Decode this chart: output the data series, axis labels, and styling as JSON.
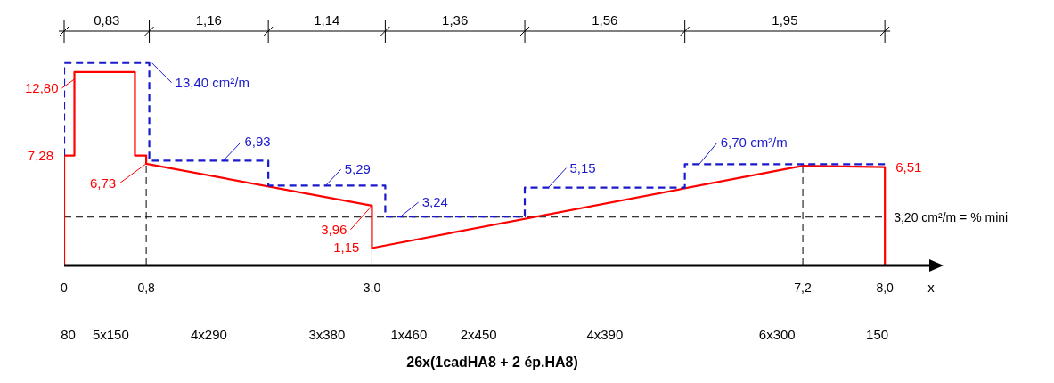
{
  "chart_data": {
    "type": "line",
    "title": "26x(1cadHA8 + 2 ép.HA8)",
    "xlabel": "x",
    "xlim": [
      0,
      8.45
    ],
    "xticks": [
      0,
      {
        "value": 0.8,
        "label": "0,8"
      },
      {
        "value": 3.0,
        "label": "3,0"
      },
      {
        "value": 7.2,
        "label": "7,2"
      },
      {
        "value": 8.0,
        "label": "8,0"
      }
    ],
    "series": [
      {
        "type": "line",
        "color": "#ff0000",
        "line_style": "solid",
        "x": [
          0,
          0,
          0.1,
          0.1,
          0.69,
          0.69,
          0.8,
          0.8,
          3.0,
          3.0,
          7.2,
          8.0,
          8.0
        ],
        "values": [
          0,
          7.28,
          7.28,
          12.8,
          12.8,
          7.28,
          7.28,
          6.73,
          3.96,
          1.15,
          6.6,
          6.51,
          0
        ],
        "value_labels": [
          null,
          "7,28",
          null,
          "12,80",
          null,
          null,
          null,
          "6,73",
          "3,96",
          "1,15",
          null,
          "6,51",
          null
        ]
      },
      {
        "type": "line",
        "color": "#1a1acc",
        "line_style": "dashed",
        "x": [
          0,
          0,
          0.83,
          0.83,
          1.55,
          1.99,
          1.99,
          2.55,
          3.13,
          3.13,
          3.28,
          4.49,
          4.49,
          4.72,
          6.05,
          6.05,
          6.19,
          8.0
        ],
        "values": [
          7.28,
          13.4,
          13.4,
          6.93,
          6.93,
          6.93,
          5.29,
          5.29,
          5.29,
          3.24,
          3.24,
          3.24,
          5.15,
          5.15,
          5.15,
          6.7,
          6.7,
          6.7
        ],
        "value_labels": [
          null,
          null,
          "13,40 cm²/m",
          null,
          "6,93",
          null,
          null,
          "5,29",
          null,
          null,
          "3,24",
          null,
          null,
          "5,15",
          null,
          null,
          "6,70 cm²/m",
          null
        ]
      }
    ],
    "ref_lines": [
      {
        "axis": "y",
        "value": 3.2,
        "label": "3,20 cm²/m = % mini",
        "color": "#000000",
        "line_style": "dashed"
      },
      {
        "axis": "x",
        "value": 0.8,
        "color": "#000000",
        "line_style": "dashed"
      },
      {
        "axis": "x",
        "value": 3.0,
        "color": "#000000",
        "line_style": "dashed"
      },
      {
        "axis": "x",
        "value": 7.2,
        "color": "#000000",
        "line_style": "dashed"
      }
    ],
    "annotations": [
      "0,83",
      "1,16",
      "1,14",
      "1,36",
      "1,56",
      "1,95",
      "80",
      "5x150",
      "4x290",
      "3x380",
      "1x460",
      "2x450",
      "4x390",
      "6x300",
      "150"
    ],
    "marker": "none",
    "grid": false
  }
}
